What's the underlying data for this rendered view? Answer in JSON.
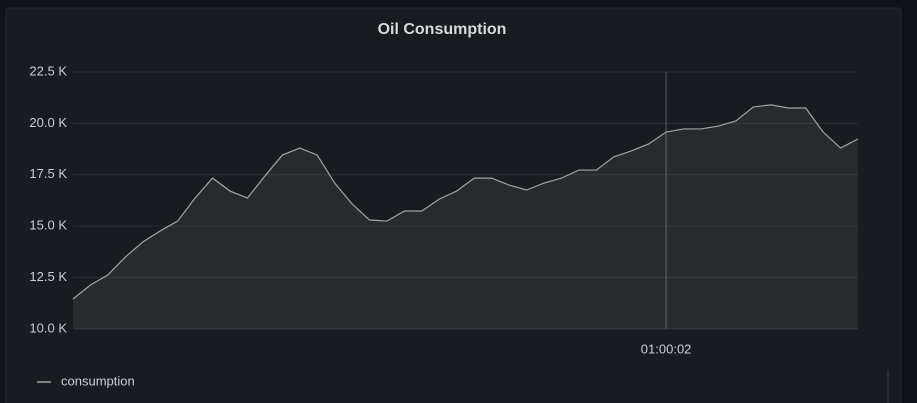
{
  "chart_data": {
    "type": "area",
    "title": "Oil Consumption",
    "categories": [
      null,
      null,
      null,
      null,
      null,
      null,
      null,
      null,
      null,
      null,
      null,
      null,
      null,
      null,
      null,
      null,
      null,
      null,
      null,
      null,
      null,
      null,
      null,
      null,
      null,
      null,
      null,
      null,
      null,
      null,
      null,
      null,
      null,
      null,
      "01:00:02",
      null,
      null,
      null,
      null,
      null,
      null,
      null,
      null,
      null,
      null,
      null
    ],
    "series": [
      {
        "name": "consumption",
        "color": "#9fa7a0",
        "values": [
          11460,
          12140,
          12630,
          13500,
          14230,
          14770,
          15250,
          16370,
          17340,
          16710,
          16370,
          17440,
          18460,
          18800,
          18460,
          17100,
          16080,
          15300,
          15250,
          15740,
          15740,
          16320,
          16710,
          17340,
          17340,
          17000,
          16760,
          17100,
          17340,
          17730,
          17730,
          18370,
          18660,
          19000,
          19580,
          19730,
          19730,
          19870,
          20120,
          20800,
          20900,
          20750,
          20750,
          19580,
          18800,
          19240
        ]
      }
    ],
    "ylim": [
      10000,
      22500
    ],
    "yticks": [
      {
        "value": 10000,
        "label": "10.0 K"
      },
      {
        "value": 12500,
        "label": "12.5 K"
      },
      {
        "value": 15000,
        "label": "15.0 K"
      },
      {
        "value": 17500,
        "label": "17.5 K"
      },
      {
        "value": 20000,
        "label": "20.0 K"
      },
      {
        "value": 22500,
        "label": "22.5 K"
      }
    ],
    "grid": true,
    "legend": "bottom-left"
  }
}
